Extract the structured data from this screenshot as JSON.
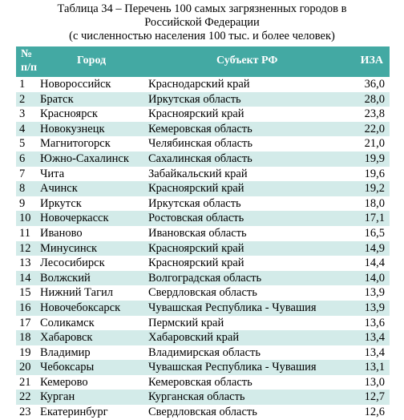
{
  "title": [
    "Таблица 34 – Перечень 100 самых загрязненных городов в",
    "Российской Федерации",
    "(с численностью населения 100 тыс. и более человек)"
  ],
  "table": {
    "header": [
      [
        "№",
        "п/п"
      ],
      "Город",
      "Субъект РФ",
      "ИЗА"
    ],
    "rows": [
      [
        "1",
        "Новороссийск",
        "Краснодарский край",
        "36,0"
      ],
      [
        "2",
        "Братск",
        "Иркутская область",
        "28,0"
      ],
      [
        "3",
        "Красноярск",
        "Красноярский край",
        "23,8"
      ],
      [
        "4",
        "Новокузнецк",
        "Кемеровская область",
        "22,0"
      ],
      [
        "5",
        "Магнитогорск",
        "Челябинская область",
        "21,0"
      ],
      [
        "6",
        "Южно-Сахалинск",
        "Сахалинская область",
        "19,9"
      ],
      [
        "7",
        "Чита",
        "Забайкальский край",
        "19,6"
      ],
      [
        "8",
        "Ачинск",
        "Красноярский край",
        "19,2"
      ],
      [
        "9",
        "Иркутск",
        "Иркутская область",
        "18,0"
      ],
      [
        "10",
        "Новочеркасск",
        "Ростовская область",
        "17,1"
      ],
      [
        "11",
        "Иваново",
        "Ивановская область",
        "16,5"
      ],
      [
        "12",
        "Минусинск",
        "Красноярский край",
        "14,9"
      ],
      [
        "13",
        "Лесосибирск",
        "Красноярский край",
        "14,4"
      ],
      [
        "14",
        "Волжский",
        "Волгоградская область",
        "14,0"
      ],
      [
        "15",
        "Нижний Тагил",
        "Свердловская область",
        "13,9"
      ],
      [
        "16",
        "Новочебоксарск",
        "Чувашская Республика - Чувашия",
        "13,9"
      ],
      [
        "17",
        "Соликамск",
        "Пермский край",
        "13,6"
      ],
      [
        "18",
        "Хабаровск",
        "Хабаровский край",
        "13,4"
      ],
      [
        "19",
        "Владимир",
        "Владимирская область",
        "13,4"
      ],
      [
        "20",
        "Чебоксары",
        "Чувашская Республика - Чувашия",
        "13,1"
      ],
      [
        "21",
        "Кемерово",
        "Кемеровская область",
        "13,0"
      ],
      [
        "22",
        "Курган",
        "Курганская область",
        "12,7"
      ],
      [
        "23",
        "Екатеринбург",
        "Свердловская область",
        "12,6"
      ]
    ]
  }
}
